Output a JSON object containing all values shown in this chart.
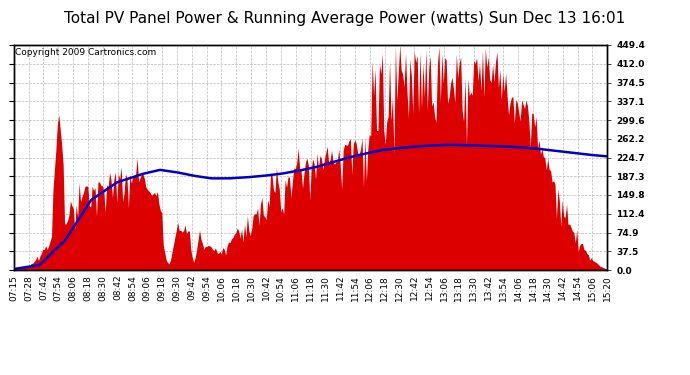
{
  "title": "Total PV Panel Power & Running Average Power (watts) Sun Dec 13 16:01",
  "copyright": "Copyright 2009 Cartronics.com",
  "ylabel_right_ticks": [
    0.0,
    37.5,
    74.9,
    112.4,
    149.8,
    187.3,
    224.7,
    262.2,
    299.6,
    337.1,
    374.5,
    412.0,
    449.4
  ],
  "ymax": 449.4,
  "ymin": 0.0,
  "bg_color": "#ffffff",
  "plot_bg_color": "#ffffff",
  "grid_color": "#bbbbbb",
  "bar_color": "#dd0000",
  "line_color": "#0000cc",
  "title_fontsize": 11,
  "copyright_fontsize": 6.5,
  "tick_fontsize": 6.5,
  "x_tick_labels": [
    "07:15",
    "07:28",
    "07:42",
    "07:54",
    "08:06",
    "08:18",
    "08:30",
    "08:42",
    "08:54",
    "09:06",
    "09:18",
    "09:30",
    "09:42",
    "09:54",
    "10:06",
    "10:18",
    "10:30",
    "10:42",
    "10:54",
    "11:06",
    "11:18",
    "11:30",
    "11:42",
    "11:54",
    "12:06",
    "12:18",
    "12:30",
    "12:42",
    "12:54",
    "13:06",
    "13:18",
    "13:30",
    "13:42",
    "13:54",
    "14:06",
    "14:18",
    "14:30",
    "14:42",
    "14:54",
    "15:06",
    "15:20"
  ],
  "ra_keypoints": [
    [
      0,
      2
    ],
    [
      3,
      10
    ],
    [
      6,
      60
    ],
    [
      9,
      140
    ],
    [
      12,
      175
    ],
    [
      15,
      192
    ],
    [
      17,
      200
    ],
    [
      19,
      195
    ],
    [
      21,
      188
    ],
    [
      23,
      183
    ],
    [
      25,
      183
    ],
    [
      27,
      185
    ],
    [
      29,
      188
    ],
    [
      31,
      192
    ],
    [
      33,
      198
    ],
    [
      35,
      205
    ],
    [
      37,
      215
    ],
    [
      39,
      225
    ],
    [
      41,
      233
    ],
    [
      43,
      240
    ],
    [
      45,
      244
    ],
    [
      47,
      247
    ],
    [
      49,
      249
    ],
    [
      51,
      250
    ],
    [
      53,
      249
    ],
    [
      55,
      248
    ],
    [
      57,
      247
    ],
    [
      59,
      245
    ],
    [
      61,
      242
    ],
    [
      63,
      238
    ],
    [
      65,
      234
    ],
    [
      67,
      230
    ],
    [
      69,
      227
    ]
  ],
  "pv_keypoints_x": [
    0,
    1,
    2,
    3,
    4,
    5,
    6,
    7,
    8,
    9,
    10,
    11,
    12,
    13,
    14,
    15,
    16,
    17,
    18,
    19,
    20,
    21,
    22,
    23,
    24,
    25,
    26,
    27,
    28,
    29,
    30,
    31,
    32,
    33,
    34,
    35,
    36,
    37,
    38,
    39,
    40,
    41,
    42,
    43,
    44,
    45,
    46,
    47,
    48,
    49,
    50,
    51,
    52,
    53,
    54,
    55,
    56,
    57,
    58,
    59,
    60,
    61,
    62,
    63,
    64,
    65,
    66,
    67,
    68,
    69
  ],
  "pv_keypoints_y": [
    2,
    5,
    12,
    30,
    55,
    80,
    100,
    130,
    155,
    170,
    175,
    185,
    200,
    195,
    190,
    185,
    165,
    130,
    100,
    90,
    80,
    70,
    55,
    45,
    35,
    55,
    80,
    100,
    120,
    140,
    160,
    175,
    190,
    205,
    215,
    220,
    225,
    235,
    245,
    255,
    260,
    265,
    270,
    280,
    290,
    300,
    310,
    320,
    335,
    350,
    360,
    365,
    370,
    380,
    385,
    390,
    395,
    385,
    370,
    350,
    325,
    300,
    270,
    240,
    200,
    165,
    130,
    100,
    65,
    30
  ]
}
